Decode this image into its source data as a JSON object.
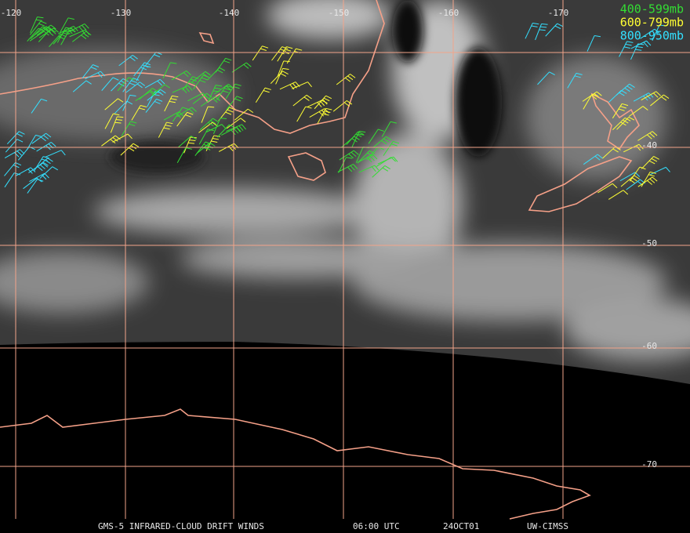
{
  "longitude_labels": [
    "-120",
    "-130",
    "-140",
    "-150",
    "-160",
    "-170"
  ],
  "latitude_labels": [
    "-40",
    "-50",
    "-60",
    "-70"
  ],
  "legend": [
    {
      "label": "400-599mb",
      "color": "#33dd33"
    },
    {
      "label": "600-799mb",
      "color": "#ffff33"
    },
    {
      "label": "800-950mb",
      "color": "#33e0ff"
    }
  ],
  "footer": [
    "GMS-5 INFRARED-CLOUD DRIFT WINDS",
    "06:00 UTC",
    "24OCT01",
    "UW-CIMSS"
  ]
}
